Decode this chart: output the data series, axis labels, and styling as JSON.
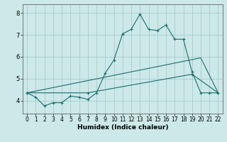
{
  "title": "",
  "xlabel": "Humidex (Indice chaleur)",
  "bg_color": "#cce8e8",
  "grid_color": "#aacccc",
  "line_color": "#1a6e6e",
  "xlim": [
    -0.5,
    22.5
  ],
  "ylim": [
    3.4,
    8.4
  ],
  "xticks": [
    0,
    1,
    2,
    3,
    4,
    5,
    6,
    7,
    8,
    9,
    10,
    11,
    12,
    13,
    14,
    15,
    16,
    17,
    18,
    19,
    20,
    21,
    22
  ],
  "yticks": [
    4,
    5,
    6,
    7,
    8
  ],
  "line1_x": [
    0,
    1,
    2,
    3,
    4,
    5,
    6,
    7,
    8,
    9,
    10,
    11,
    12,
    13,
    14,
    15,
    16,
    17,
    18,
    19,
    20,
    21,
    22
  ],
  "line1_y": [
    4.35,
    4.15,
    3.75,
    3.9,
    3.9,
    4.2,
    4.15,
    4.05,
    4.35,
    5.25,
    5.85,
    7.05,
    7.25,
    7.95,
    7.25,
    7.2,
    7.45,
    6.8,
    6.8,
    5.3,
    4.35,
    4.35,
    4.35
  ],
  "line2_x": [
    0,
    7,
    19,
    22
  ],
  "line2_y": [
    4.35,
    4.35,
    5.2,
    4.35
  ],
  "line3_x": [
    0,
    20,
    22
  ],
  "line3_y": [
    4.35,
    5.95,
    4.35
  ]
}
